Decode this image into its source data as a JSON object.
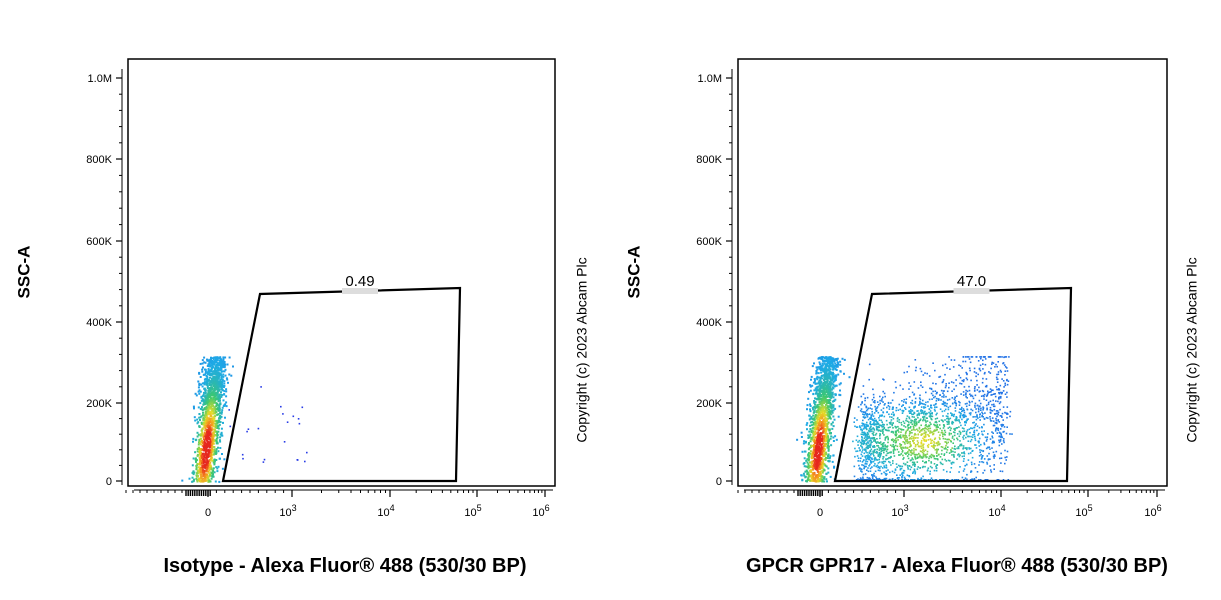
{
  "chart_data": [
    {
      "type": "scatter",
      "panel": "isotype",
      "xlabel": "Isotype - Alexa Fluor® 488 (530/30 BP)",
      "ylabel": "SSC-A",
      "copyright": "Copyright (c) 2023 Abcam Plc",
      "x_scale": "biexponential",
      "x_ticks": [
        "0",
        "10",
        "10",
        "10",
        "10"
      ],
      "x_tick_exponents": [
        "",
        "3",
        "4",
        "5",
        "6"
      ],
      "y_ticks": [
        "0",
        "200K",
        "400K",
        "600K",
        "800K",
        "1.0M"
      ],
      "ylim": [
        0,
        1000000
      ],
      "grid": false,
      "gate": {
        "label": "0.49",
        "percent": 0.49,
        "vertices": [
          [
            150,
            0
          ],
          [
            600,
            460000
          ],
          [
            70000,
            482000
          ],
          [
            70000,
            0
          ]
        ]
      },
      "populations": [
        {
          "name": "negative",
          "x_center": 0,
          "y_range": [
            0,
            310000
          ],
          "events": "dense"
        },
        {
          "name": "gate events",
          "x_center": 300,
          "y_range": [
            50000,
            250000
          ],
          "events": "sparse"
        }
      ]
    },
    {
      "type": "scatter",
      "panel": "gpr17",
      "xlabel": "GPCR GPR17 - Alexa Fluor® 488 (530/30 BP)",
      "ylabel": "SSC-A",
      "copyright": "Copyright (c) 2023 Abcam Plc",
      "x_scale": "biexponential",
      "x_ticks": [
        "0",
        "10",
        "10",
        "10",
        "10"
      ],
      "x_tick_exponents": [
        "",
        "3",
        "4",
        "5",
        "6"
      ],
      "y_ticks": [
        "0",
        "200K",
        "400K",
        "600K",
        "800K",
        "1.0M"
      ],
      "ylim": [
        0,
        1000000
      ],
      "grid": false,
      "gate": {
        "label": "47.0",
        "percent": 47.0,
        "vertices": [
          [
            150,
            0
          ],
          [
            600,
            460000
          ],
          [
            70000,
            482000
          ],
          [
            70000,
            0
          ]
        ]
      },
      "populations": [
        {
          "name": "negative",
          "x_center": 0,
          "y_range": [
            0,
            310000
          ],
          "events": "dense"
        },
        {
          "name": "positive",
          "x_range": [
            300,
            10000
          ],
          "y_range": [
            0,
            310000
          ],
          "events": "dense"
        }
      ]
    }
  ]
}
